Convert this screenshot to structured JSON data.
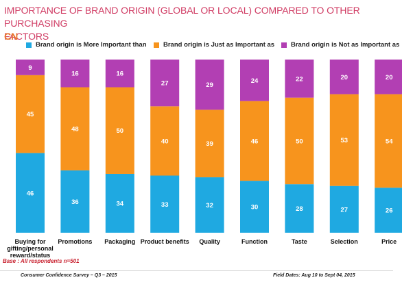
{
  "header": {
    "title": "IMPORTANCE OF  BRAND ORIGIN (GLOBAL OR LOCAL) COMPARED TO OTHER PURCHASING\nFACTORS",
    "market": "CN"
  },
  "colors": {
    "more": "#1fa9e1",
    "same": "#f7941d",
    "less": "#b23fb3",
    "title": "#d03b63",
    "market": "#e8742b"
  },
  "chart_data": {
    "type": "bar",
    "stacked": true,
    "categories": [
      "Buying for\ngifting/personal\nreward/status",
      "Promotions",
      "Packaging",
      "Product benefits",
      "Quality",
      "Function",
      "Taste",
      "Selection",
      "Price"
    ],
    "series": [
      {
        "name": "Brand origin is More Important than",
        "values": [
          46,
          36,
          34,
          33,
          32,
          30,
          28,
          27,
          26
        ]
      },
      {
        "name": "Brand origin is Just as Important as",
        "values": [
          45,
          48,
          50,
          40,
          39,
          46,
          50,
          53,
          54
        ]
      },
      {
        "name": "Brand origin is Not as Important as",
        "values": [
          9,
          16,
          16,
          27,
          29,
          24,
          22,
          20,
          20
        ]
      }
    ],
    "ylim": [
      0,
      100
    ],
    "legend_position": "top",
    "grid": false
  },
  "footer": {
    "base_note": "Base : All respondents n=501",
    "survey": "Consumer Confidence Survey – Q3 – 2015",
    "field_dates": "Field Dates: Aug 10 to Sept 04, 2015"
  }
}
